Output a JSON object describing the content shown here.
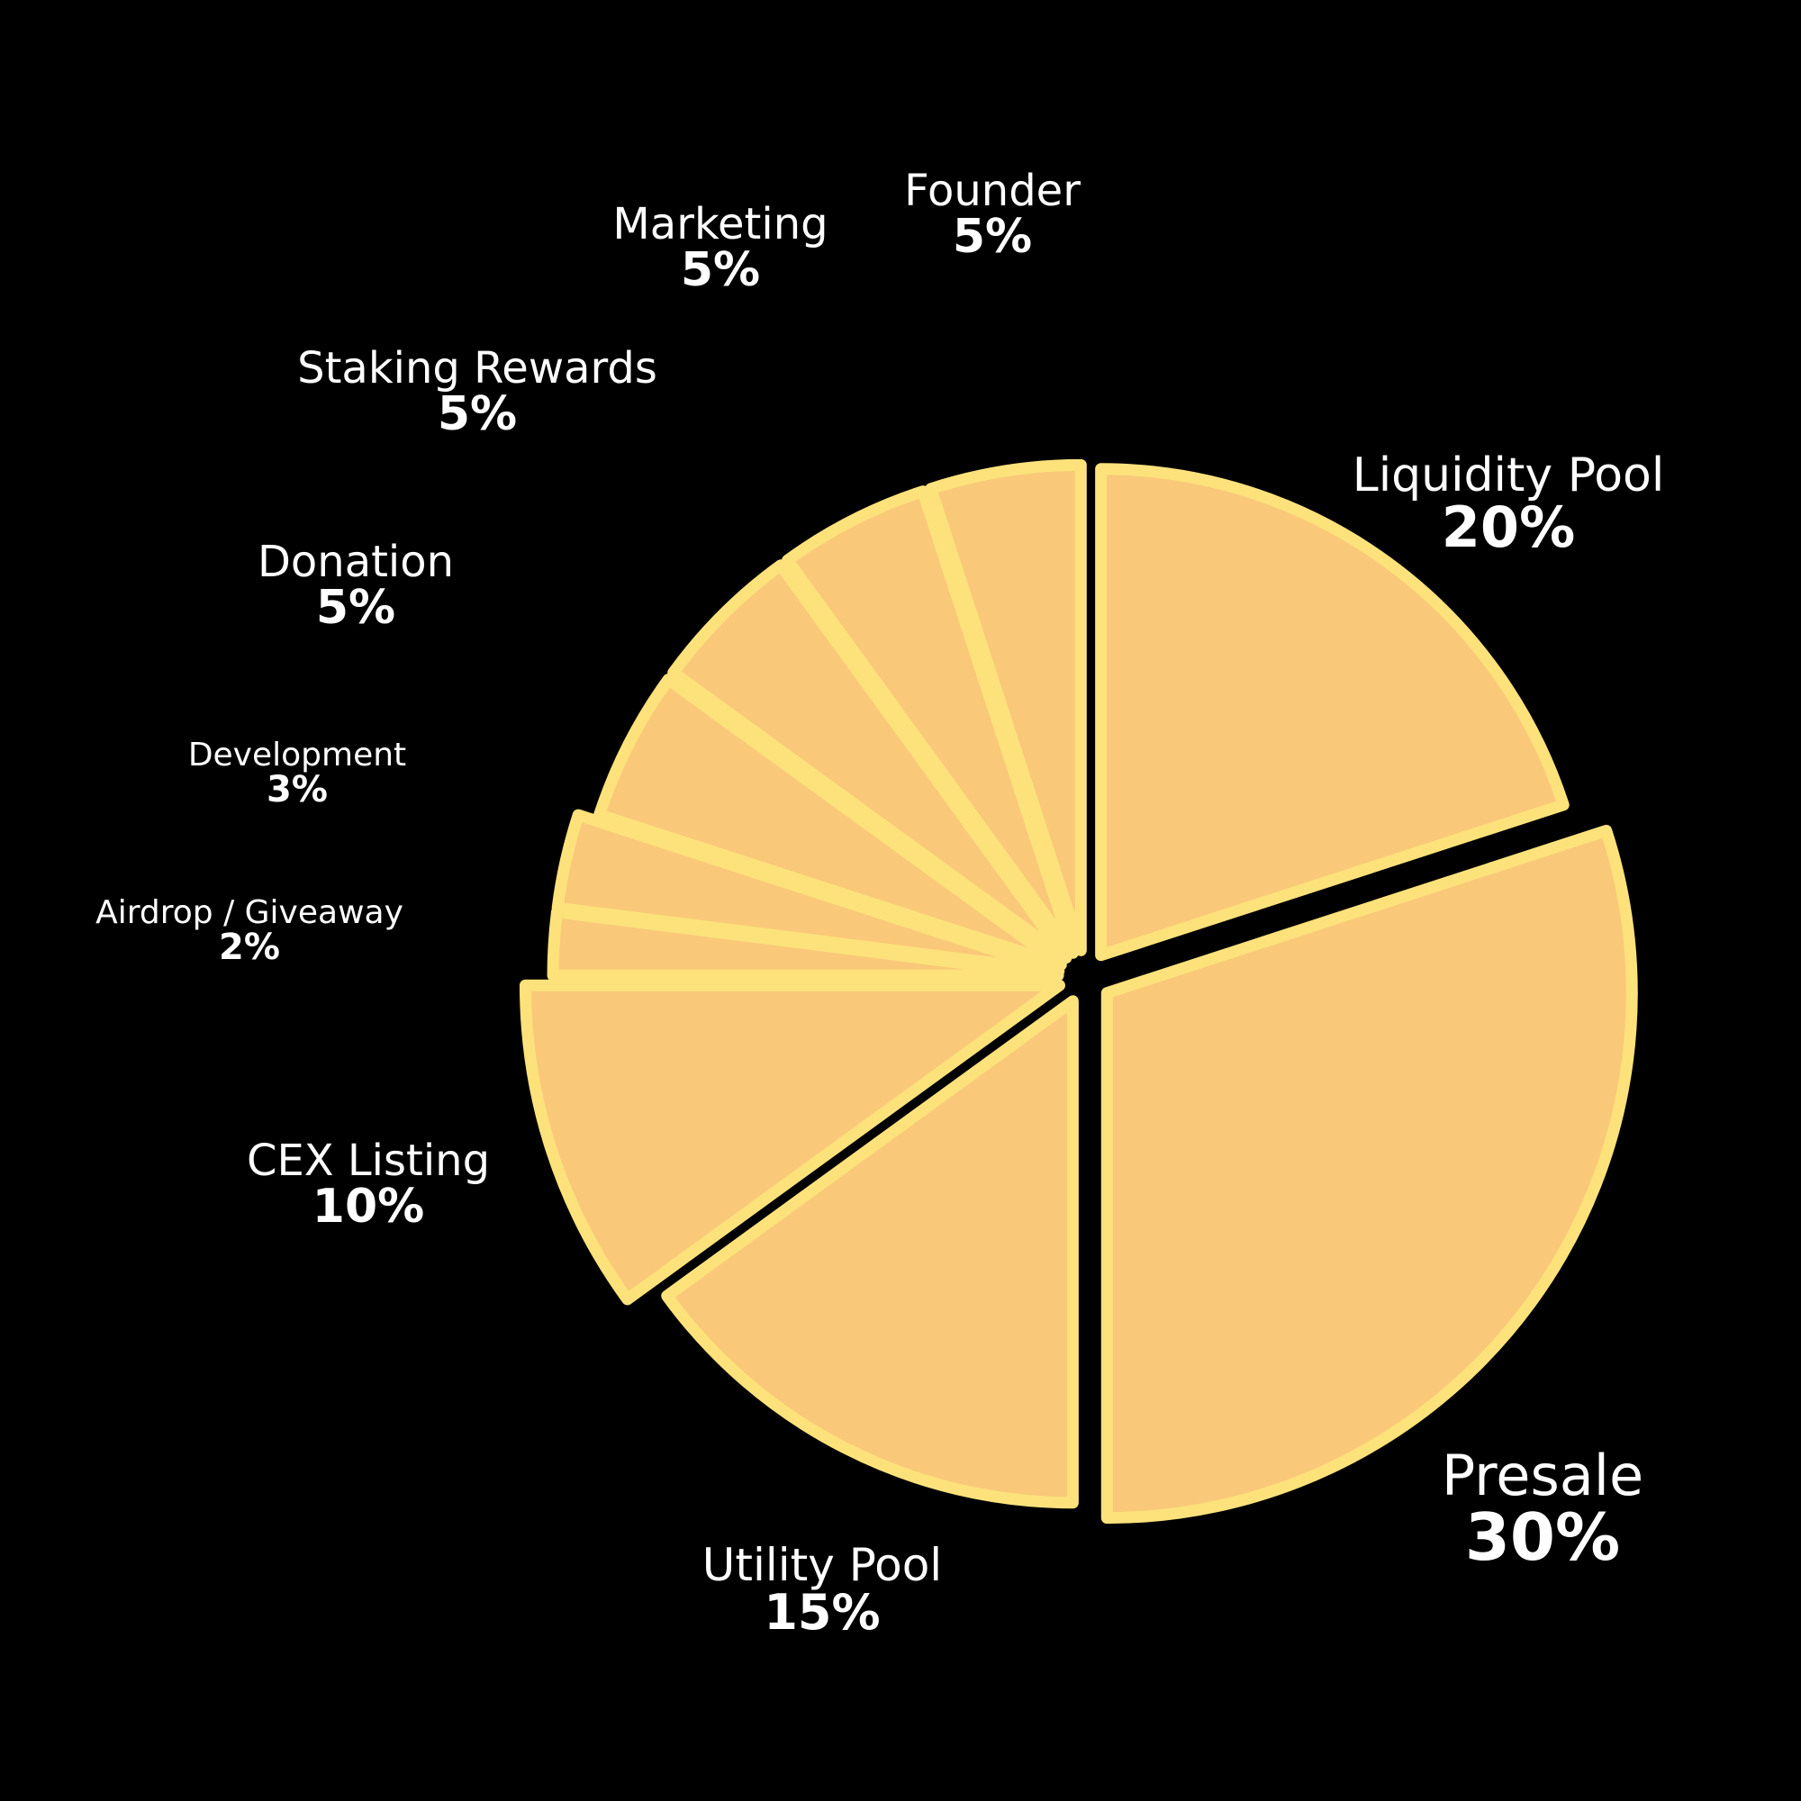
{
  "colors": {
    "background": "#000000",
    "slice_fill": "#f9c878",
    "slice_stroke": "#fde27c",
    "text": "#ffffff"
  },
  "chart_data": {
    "type": "pie",
    "slices": [
      {
        "label": "Liquidity Pool",
        "value_text": "20%",
        "value": 20
      },
      {
        "label": "Presale",
        "value_text": "30%",
        "value": 30
      },
      {
        "label": "Utility Pool",
        "value_text": "15%",
        "value": 15
      },
      {
        "label": "CEX Listing",
        "value_text": "10%",
        "value": 10
      },
      {
        "label": "Airdrop / Giveaway",
        "value_text": "2%",
        "value": 2
      },
      {
        "label": "Development",
        "value_text": "3%",
        "value": 3
      },
      {
        "label": "Donation",
        "value_text": "5%",
        "value": 5
      },
      {
        "label": "Staking Rewards",
        "value_text": "5%",
        "value": 5
      },
      {
        "label": "Marketing",
        "value_text": "5%",
        "value": 5
      },
      {
        "label": "Founder",
        "value_text": "5%",
        "value": 5
      }
    ]
  }
}
